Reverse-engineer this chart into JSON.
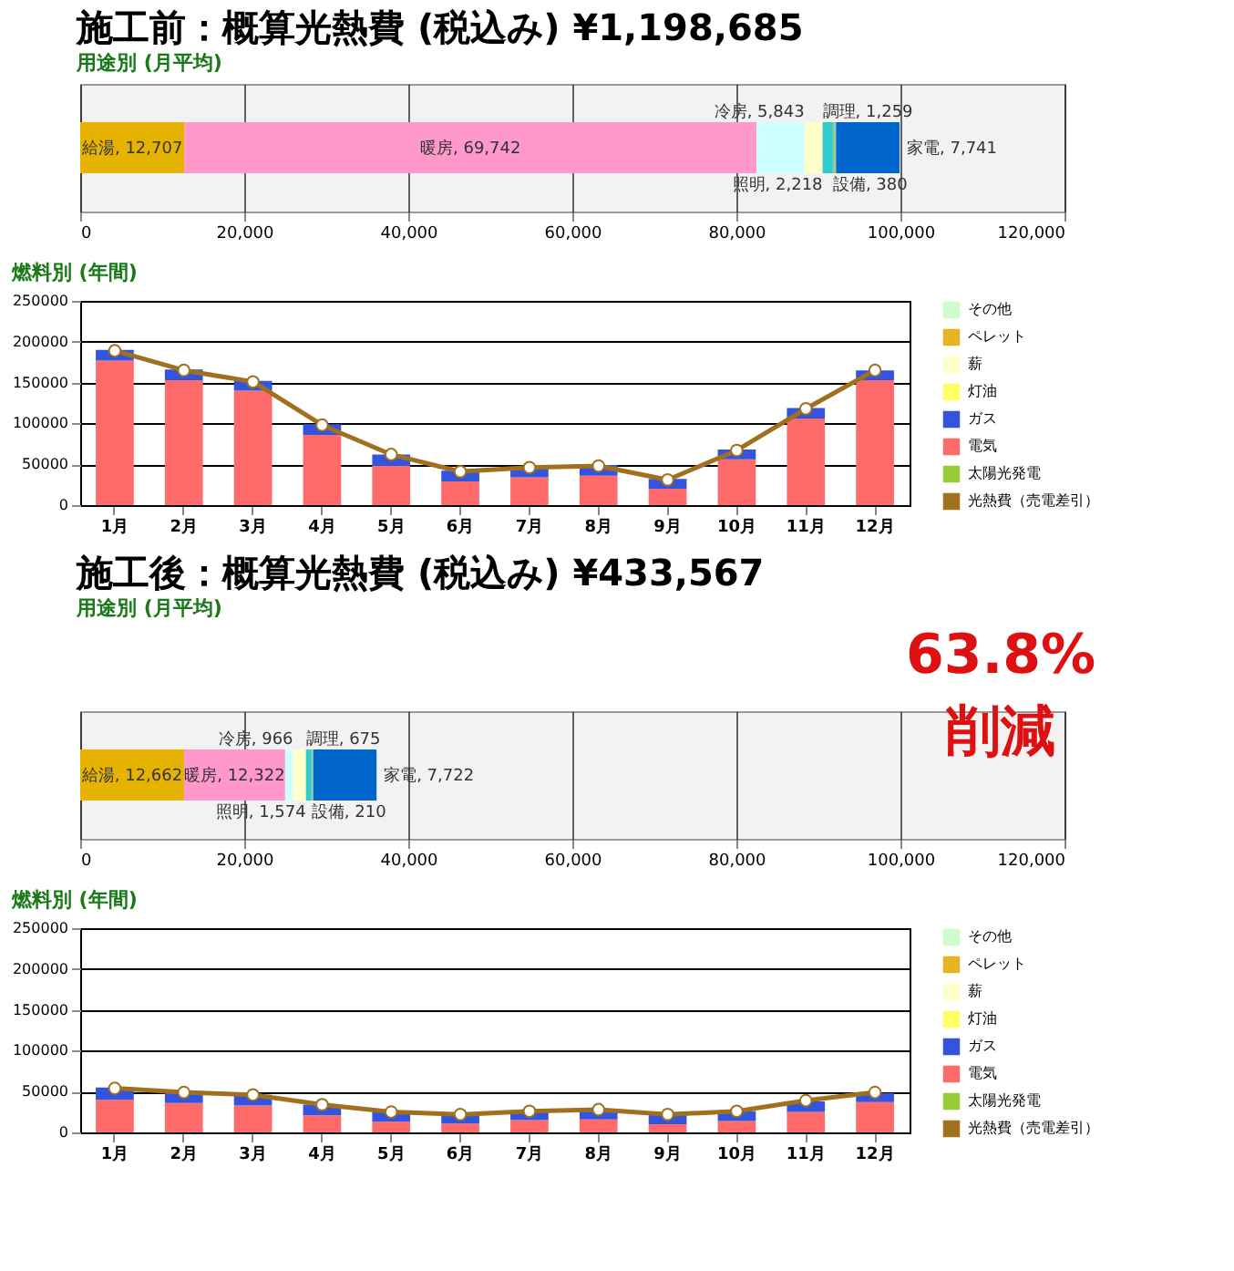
{
  "chart_data": [
    {
      "type": "bar",
      "orientation": "horizontal",
      "stacked": true,
      "title": "施工前：概算光熱費 (税込み) ¥1,198,685",
      "subtitle": "用途別 (月平均)",
      "categories": [
        null
      ],
      "xlim": [
        0,
        120000
      ],
      "xticks": [
        0,
        {
          "value": 20000,
          "label": "20,000"
        },
        {
          "value": 40000,
          "label": "40,000"
        },
        {
          "value": 60000,
          "label": "60,000"
        },
        {
          "value": 80000,
          "label": "80,000"
        },
        {
          "value": 100000,
          "label": "100,000"
        },
        {
          "value": 120000,
          "label": "120,000"
        }
      ],
      "grid": "x",
      "series": [
        {
          "color": "#e6b400",
          "values": [
            12707
          ],
          "value_labels": [
            "給湯, 12,707"
          ]
        },
        {
          "color": "#ff99cc",
          "values": [
            69742
          ],
          "value_labels": [
            "暖房, 69,742"
          ]
        },
        {
          "color": "#ccffff",
          "values": [
            5843
          ],
          "value_labels": [
            "冷房, 5,843"
          ]
        },
        {
          "color": "#ffffcc",
          "values": [
            2218
          ],
          "value_labels": [
            "照明, 2,218"
          ]
        },
        {
          "color": "#33cccc",
          "values": [
            1259
          ],
          "value_labels": [
            "調理, 1,259"
          ]
        },
        {
          "color": "#99cc99",
          "values": [
            380
          ],
          "value_labels": [
            "設備, 380"
          ]
        },
        {
          "color": "#0066cc",
          "values": [
            7741
          ],
          "value_labels": [
            "家電, 7,741"
          ]
        }
      ]
    },
    {
      "type": "bar",
      "stacked": true,
      "title": "燃料別 (年間)",
      "categories": [
        "1月",
        "2月",
        "3月",
        "4月",
        "5月",
        "6月",
        "7月",
        "8月",
        "9月",
        "10月",
        "11月",
        "12月"
      ],
      "ylim": [
        0,
        250000
      ],
      "yticks": [
        0,
        50000,
        100000,
        150000,
        200000,
        250000
      ],
      "grid": "y",
      "legend": "right",
      "series": [
        {
          "name": "太陽光発電",
          "color": "#99cc33",
          "values": [
            0,
            0,
            0,
            0,
            0,
            0,
            0,
            0,
            0,
            0,
            0,
            0
          ]
        },
        {
          "name": "電気",
          "color": "#ff6b6b",
          "values": [
            177000,
            153000,
            140000,
            86000,
            48000,
            29000,
            34000,
            36000,
            20000,
            56000,
            106000,
            153000
          ]
        },
        {
          "name": "ガス",
          "color": "#3355dd",
          "values": [
            13000,
            13000,
            12000,
            13000,
            14000,
            13000,
            13000,
            13000,
            12000,
            12000,
            13000,
            12000
          ]
        },
        {
          "name": "灯油",
          "color": "#ffff66",
          "values": [
            0,
            0,
            0,
            0,
            0,
            0,
            0,
            0,
            0,
            0,
            0,
            0
          ]
        },
        {
          "name": "薪",
          "color": "#ffffcc",
          "values": [
            0,
            0,
            0,
            0,
            0,
            0,
            0,
            0,
            0,
            0,
            0,
            0
          ]
        },
        {
          "name": "ペレット",
          "color": "#e6b422",
          "values": [
            0,
            0,
            0,
            0,
            0,
            0,
            0,
            0,
            0,
            0,
            0,
            0
          ]
        },
        {
          "name": "その他",
          "color": "#ccffcc",
          "values": [
            0,
            0,
            0,
            0,
            0,
            0,
            0,
            0,
            0,
            0,
            0,
            0
          ]
        },
        {
          "name": "光熱費（売電差引）",
          "type": "line",
          "color": "#a0701e",
          "marker": "circle",
          "values": [
            189000,
            165000,
            151000,
            98000,
            62000,
            41000,
            46000,
            48000,
            31000,
            67000,
            118000,
            165000
          ]
        }
      ]
    },
    {
      "type": "bar",
      "orientation": "horizontal",
      "stacked": true,
      "title": "施工後：概算光熱費 (税込み) ¥433,567",
      "subtitle": "用途別 (月平均)",
      "annotations": [
        "63.8%",
        "削減"
      ],
      "categories": [
        null
      ],
      "xlim": [
        0,
        120000
      ],
      "xticks": [
        0,
        {
          "value": 20000,
          "label": "20,000"
        },
        {
          "value": 40000,
          "label": "40,000"
        },
        {
          "value": 60000,
          "label": "60,000"
        },
        {
          "value": 80000,
          "label": "80,000"
        },
        {
          "value": 100000,
          "label": "100,000"
        },
        {
          "value": 120000,
          "label": "120,000"
        }
      ],
      "grid": "x",
      "series": [
        {
          "color": "#e6b400",
          "values": [
            12662
          ],
          "value_labels": [
            "給湯, 12,662"
          ]
        },
        {
          "color": "#ff99cc",
          "values": [
            12322
          ],
          "value_labels": [
            "暖房, 12,322"
          ]
        },
        {
          "color": "#ccffff",
          "values": [
            966
          ],
          "value_labels": [
            "冷房, 966"
          ]
        },
        {
          "color": "#ffffcc",
          "values": [
            1574
          ],
          "value_labels": [
            "照明, 1,574"
          ]
        },
        {
          "color": "#33cccc",
          "values": [
            675
          ],
          "value_labels": [
            "調理, 675"
          ]
        },
        {
          "color": "#99cc99",
          "values": [
            210
          ],
          "value_labels": [
            "設備, 210"
          ]
        },
        {
          "color": "#0066cc",
          "values": [
            7722
          ],
          "value_labels": [
            "家電, 7,722"
          ]
        }
      ]
    },
    {
      "type": "bar",
      "stacked": true,
      "title": "燃料別 (年間)",
      "categories": [
        "1月",
        "2月",
        "3月",
        "4月",
        "5月",
        "6月",
        "7月",
        "8月",
        "9月",
        "10月",
        "11月",
        "12月"
      ],
      "ylim": [
        0,
        250000
      ],
      "yticks": [
        0,
        50000,
        100000,
        150000,
        200000,
        250000
      ],
      "grid": "y",
      "legend": "right",
      "series": [
        {
          "name": "太陽光発電",
          "color": "#99cc33",
          "values": [
            0,
            0,
            0,
            0,
            0,
            0,
            0,
            0,
            0,
            0,
            0,
            0
          ]
        },
        {
          "name": "電気",
          "color": "#ff6b6b",
          "values": [
            40000,
            36000,
            33000,
            21000,
            13000,
            11000,
            15000,
            16000,
            10000,
            14000,
            25000,
            37000
          ]
        },
        {
          "name": "ガス",
          "color": "#3355dd",
          "values": [
            15000,
            12000,
            13000,
            13000,
            12000,
            11000,
            11000,
            12000,
            12000,
            12000,
            13000,
            11000
          ]
        },
        {
          "name": "灯油",
          "color": "#ffff66",
          "values": [
            0,
            0,
            0,
            0,
            0,
            0,
            0,
            0,
            0,
            0,
            0,
            0
          ]
        },
        {
          "name": "薪",
          "color": "#ffffcc",
          "values": [
            0,
            0,
            0,
            0,
            0,
            0,
            0,
            0,
            0,
            0,
            0,
            0
          ]
        },
        {
          "name": "ペレット",
          "color": "#e6b422",
          "values": [
            0,
            0,
            0,
            0,
            0,
            0,
            0,
            0,
            0,
            0,
            0,
            0
          ]
        },
        {
          "name": "その他",
          "color": "#ccffcc",
          "values": [
            0,
            0,
            0,
            0,
            0,
            0,
            0,
            0,
            0,
            0,
            0,
            0
          ]
        },
        {
          "name": "光熱費（売電差引）",
          "type": "line",
          "color": "#a0701e",
          "marker": "circle",
          "values": [
            54000,
            49000,
            46000,
            34000,
            25000,
            22000,
            26000,
            28000,
            22000,
            26000,
            39000,
            49000
          ]
        }
      ]
    }
  ]
}
